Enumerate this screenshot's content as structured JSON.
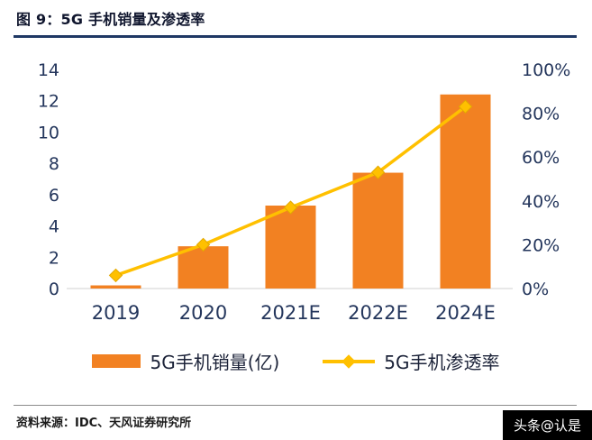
{
  "header": {
    "title": "图 9：5G 手机销量及渗透率",
    "accent_color": "#1F3864"
  },
  "chart_data": {
    "type": "bar",
    "subtype": "bar+line combo, dual axis",
    "categories": [
      "2019",
      "2020",
      "2021E",
      "2022E",
      "2024E"
    ],
    "series": [
      {
        "name": "5G手机销量(亿)",
        "type": "bar",
        "axis": "left",
        "color": "#F28122",
        "values": [
          0.2,
          2.7,
          5.3,
          7.4,
          12.4
        ]
      },
      {
        "name": "5G手机渗透率",
        "type": "line",
        "axis": "right",
        "color": "#FFC000",
        "marker": "diamond",
        "values": [
          6,
          20,
          37,
          53,
          83
        ]
      }
    ],
    "left_axis": {
      "min": 0,
      "max": 14,
      "ticks": [
        "0",
        "2",
        "4",
        "6",
        "8",
        "10",
        "12",
        "14"
      ]
    },
    "right_axis": {
      "min": 0,
      "max": 100,
      "ticks": [
        "0%",
        "20%",
        "40%",
        "60%",
        "80%",
        "100%"
      ]
    },
    "grid": false,
    "legend_position": "bottom",
    "text_color": "#24365C",
    "baseline_color": "#D9D9D9"
  },
  "legend": {
    "items": [
      {
        "label": "5G手机销量(亿)",
        "swatch": "bar",
        "color": "#F28122"
      },
      {
        "label": "5G手机渗透率",
        "swatch": "line-diamond",
        "color": "#FFC000"
      }
    ]
  },
  "footer": {
    "source": "资料来源：IDC、天风证券研究所"
  },
  "watermark": {
    "text": "头条@认是",
    "bg": "#000000",
    "fg": "#FFFFFF"
  }
}
